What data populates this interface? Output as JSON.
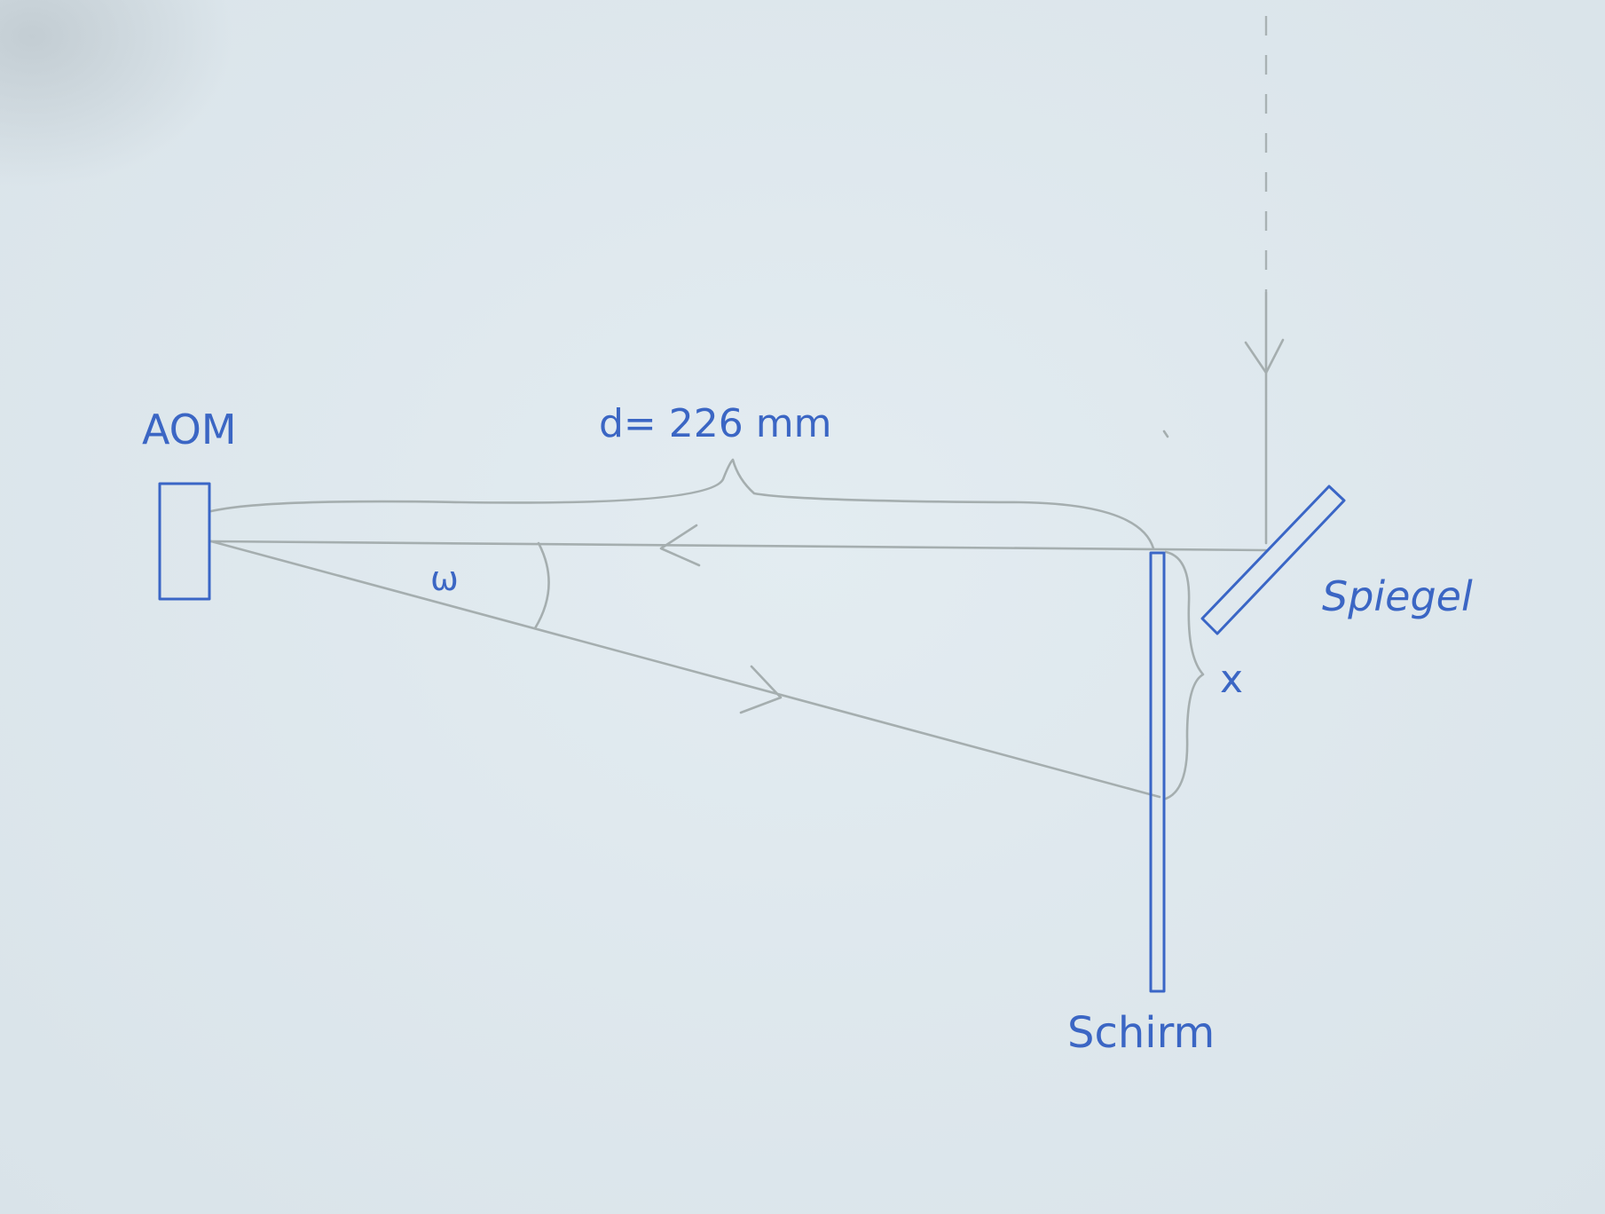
{
  "labels": {
    "aom": "AOM",
    "distance": "d= 226 mm",
    "angle": "ω",
    "mirror": "Spiegel",
    "offset": "x",
    "screen": "Schirm"
  },
  "colors": {
    "paper": "#dfe8ed",
    "pencil": "#a5aeaf",
    "ink": "#3a66c6"
  }
}
